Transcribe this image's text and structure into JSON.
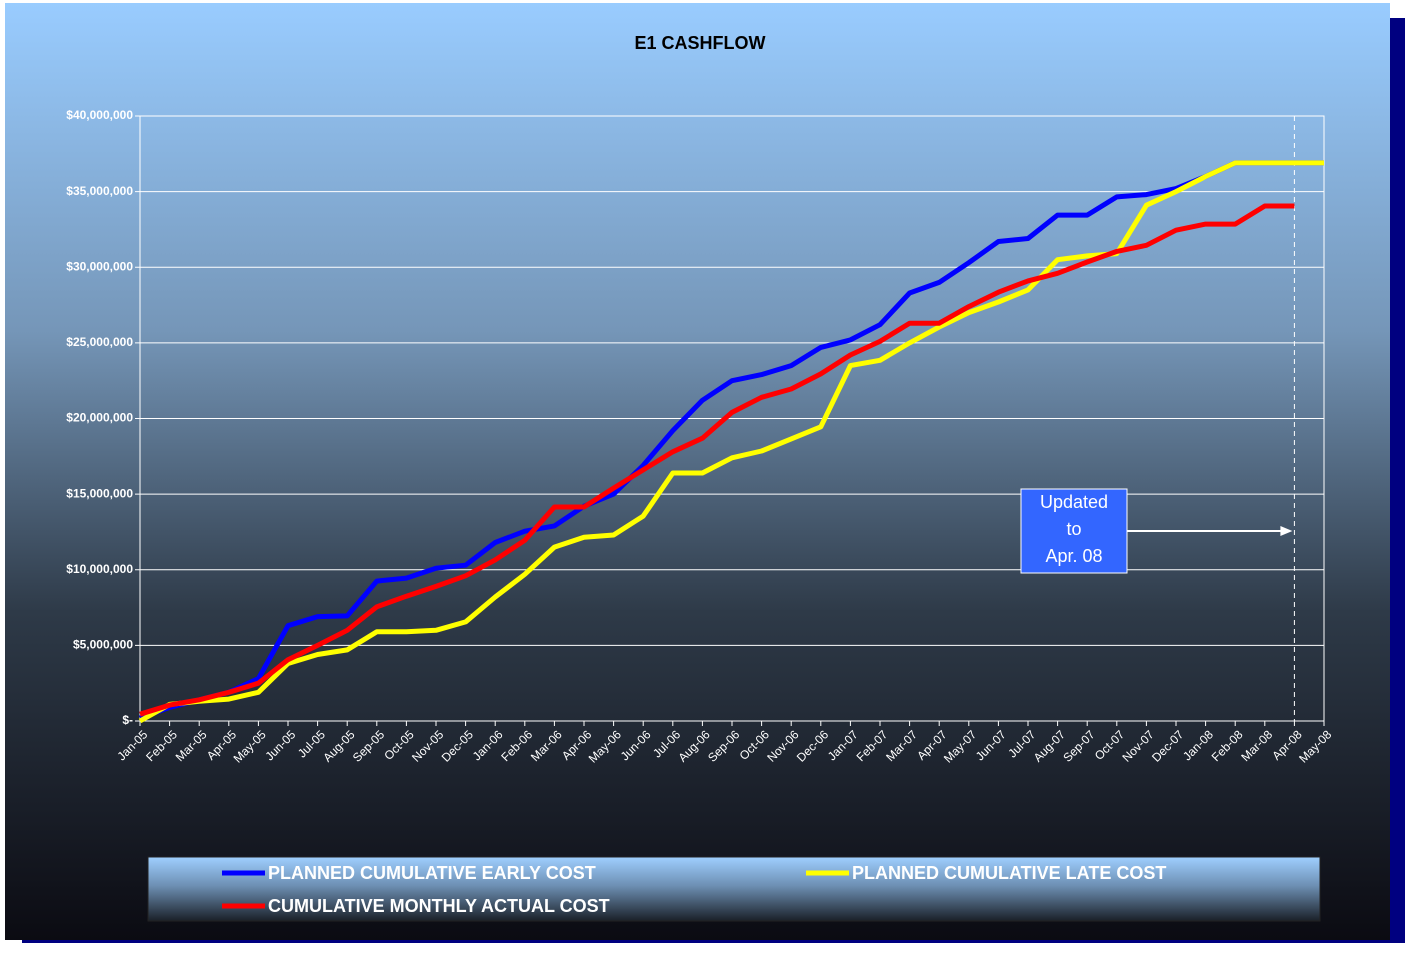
{
  "chart_data": {
    "type": "line",
    "title": "E1 CASHFLOW",
    "categories": [
      "Jan-05",
      "Feb-05",
      "Mar-05",
      "Apr-05",
      "May-05",
      "Jun-05",
      "Jul-05",
      "Aug-05",
      "Sep-05",
      "Oct-05",
      "Nov-05",
      "Dec-05",
      "Jan-06",
      "Feb-06",
      "Mar-06",
      "Apr-06",
      "May-06",
      "Jun-06",
      "Jul-06",
      "Aug-06",
      "Sep-06",
      "Oct-06",
      "Nov-06",
      "Dec-06",
      "Jan-07",
      "Feb-07",
      "Mar-07",
      "Apr-07",
      "May-07",
      "Jun-07",
      "Jul-07",
      "Aug-07",
      "Sep-07",
      "Oct-07",
      "Nov-07",
      "Dec-07",
      "Jan-08",
      "Feb-08",
      "Mar-08",
      "Apr-08",
      "May-08"
    ],
    "series": [
      {
        "name": "PLANNED CUMULATIVE EARLY COST",
        "color": "#0000ff",
        "values": [
          200000,
          900000,
          1400000,
          1900000,
          2800000,
          6300000,
          6900000,
          6950000,
          9250000,
          9450000,
          10100000,
          10300000,
          11800000,
          12550000,
          12900000,
          14200000,
          15000000,
          16900000,
          19200000,
          21200000,
          22500000,
          22900000,
          23500000,
          24700000,
          25200000,
          26200000,
          28300000,
          29000000,
          30300000,
          31700000,
          31900000,
          33450000,
          33450000,
          34650000,
          34800000,
          35200000,
          36000000,
          36900000,
          36900000,
          36900000,
          36900000
        ]
      },
      {
        "name": "PLANNED CUMULATIVE LATE COST",
        "color": "#ffff00",
        "values": [
          0,
          1100000,
          1300000,
          1450000,
          1900000,
          3800000,
          4400000,
          4700000,
          5900000,
          5900000,
          6000000,
          6550000,
          8200000,
          9700000,
          11500000,
          12150000,
          12300000,
          13550000,
          16400000,
          16400000,
          17400000,
          17850000,
          18650000,
          19450000,
          23500000,
          23850000,
          25000000,
          26050000,
          27000000,
          27700000,
          28500000,
          30500000,
          30750000,
          30900000,
          34100000,
          35000000,
          36000000,
          36900000,
          36900000,
          36900000,
          36900000
        ]
      },
      {
        "name": "CUMULATIVE MONTHLY ACTUAL COST",
        "color": "#ff0000",
        "values": [
          450000,
          1050000,
          1400000,
          1900000,
          2500000,
          4050000,
          5000000,
          6000000,
          7550000,
          8250000,
          8900000,
          9600000,
          10650000,
          11950000,
          14150000,
          14150000,
          15400000,
          16600000,
          17800000,
          18700000,
          20400000,
          21400000,
          21950000,
          22950000,
          24200000,
          25100000,
          26300000,
          26300000,
          27400000,
          28350000,
          29100000,
          29600000,
          30350000,
          31050000,
          31450000,
          32450000,
          32850000,
          32850000,
          34050000,
          34050000,
          null
        ]
      }
    ],
    "ylim": [
      0,
      40000000
    ],
    "yticks": [
      {
        "value": 0,
        "label": "$-"
      },
      {
        "value": 5000000,
        "label": "$5,000,000"
      },
      {
        "value": 10000000,
        "label": "$10,000,000"
      },
      {
        "value": 15000000,
        "label": "$15,000,000"
      },
      {
        "value": 20000000,
        "label": "$20,000,000"
      },
      {
        "value": 25000000,
        "label": "$25,000,000"
      },
      {
        "value": 30000000,
        "label": "$30,000,000"
      },
      {
        "value": 35000000,
        "label": "$35,000,000"
      },
      {
        "value": 40000000,
        "label": "$40,000,000"
      }
    ],
    "grid": true,
    "legend": "bottom",
    "marker": "Apr-08",
    "annotation": [
      "Updated",
      "to",
      "Apr. 08"
    ]
  }
}
